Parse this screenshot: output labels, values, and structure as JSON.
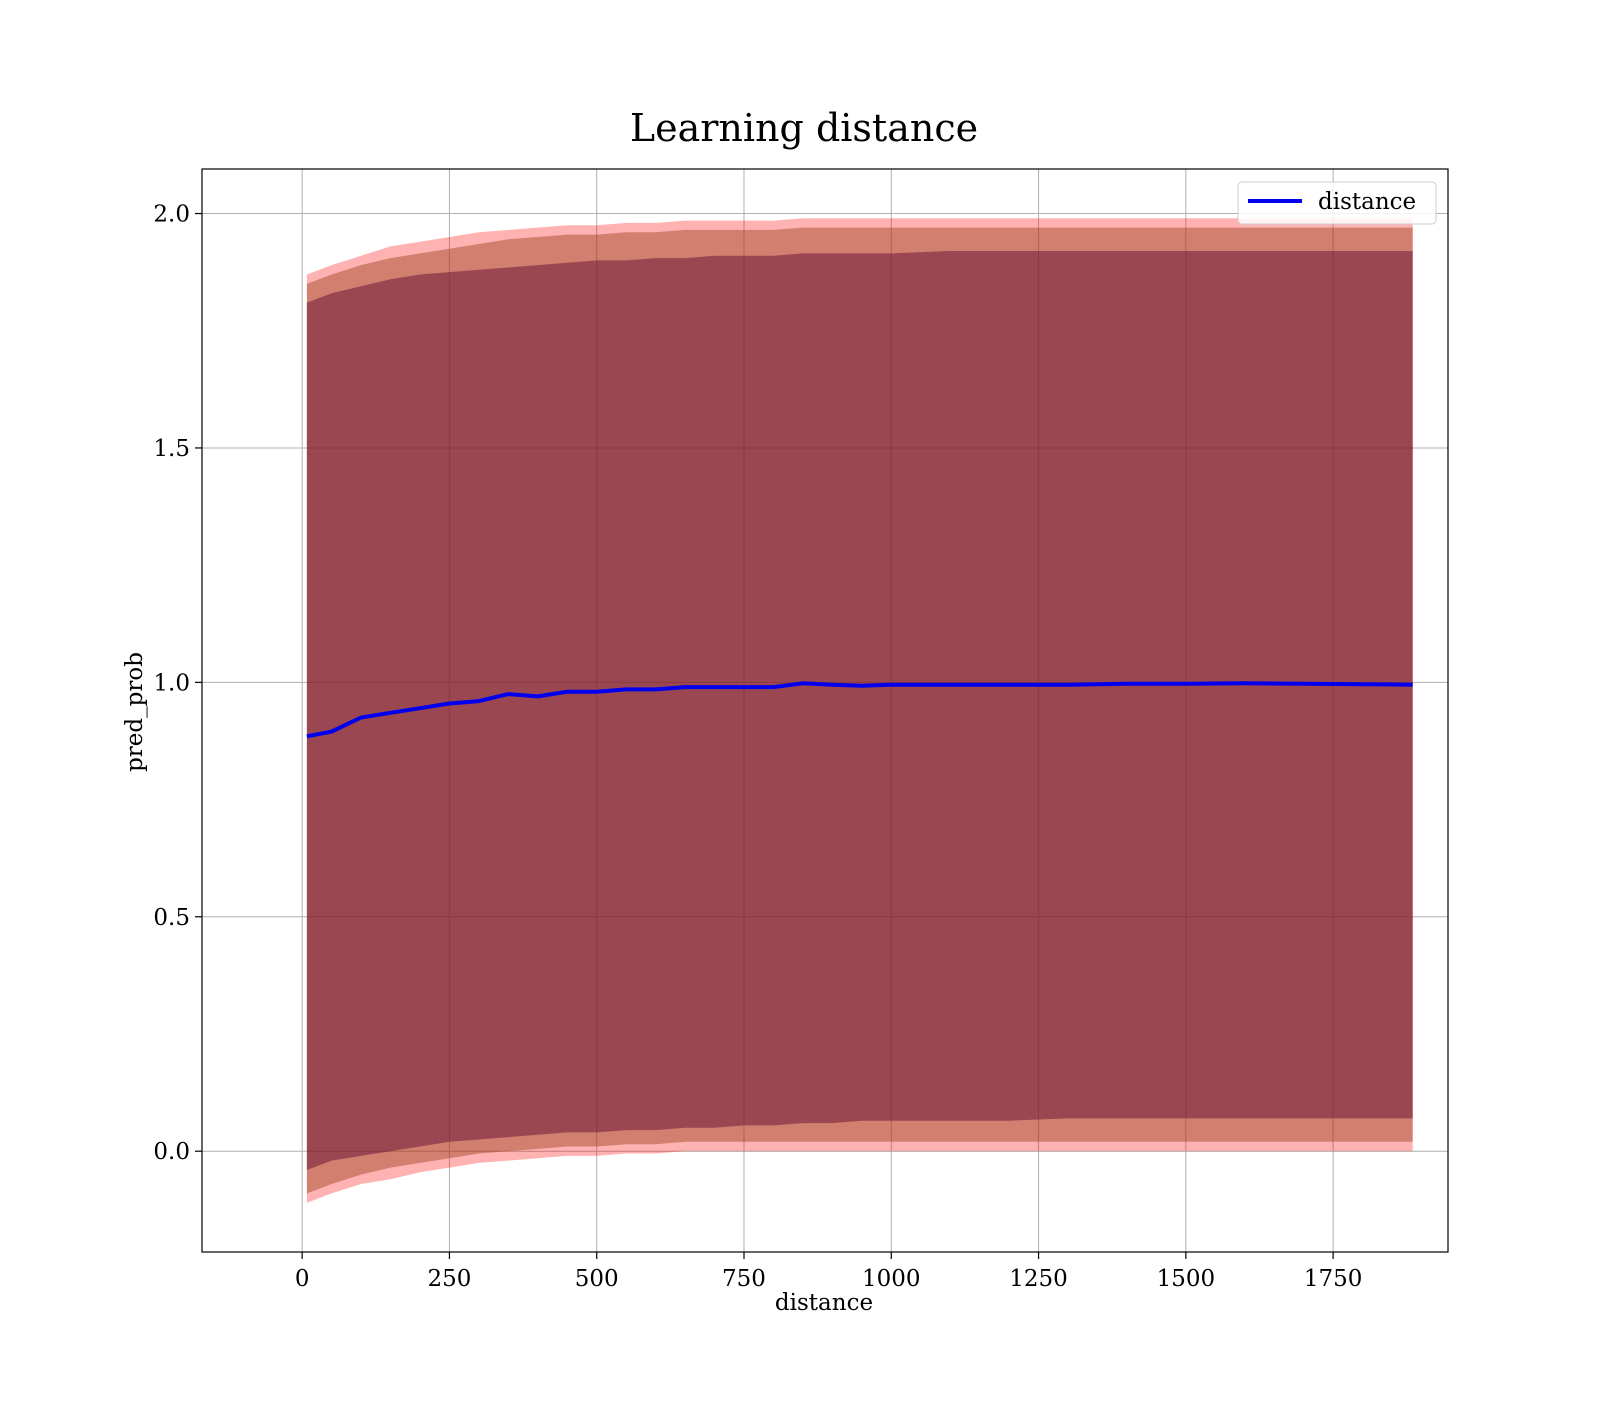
{
  "chart_data": {
    "type": "area",
    "title": "Learning distance",
    "xlabel": "distance",
    "ylabel": "pred_prob",
    "xlim": [
      -170,
      1945
    ],
    "ylim": [
      -0.215,
      2.095
    ],
    "xticks": [
      0,
      250,
      500,
      750,
      1000,
      1250,
      1500,
      1750
    ],
    "xtick_labels": [
      "0",
      "250",
      "500",
      "750",
      "1000",
      "1250",
      "1500",
      "1750"
    ],
    "yticks": [
      0.0,
      0.5,
      1.0,
      1.5,
      2.0
    ],
    "ytick_labels": [
      "0.0",
      "0.5",
      "1.0",
      "1.5",
      "2.0"
    ],
    "grid": true,
    "legend": {
      "position": "top-right",
      "entries": [
        "distance"
      ]
    },
    "colors": {
      "line": "#0000ee",
      "band": "#ff0000",
      "band_mid": "#9b4020",
      "band_inner": "#6b1a3a",
      "grid": "#b0b0b0"
    },
    "x": [
      8,
      50,
      100,
      150,
      200,
      250,
      300,
      350,
      400,
      450,
      500,
      550,
      600,
      650,
      700,
      750,
      800,
      850,
      900,
      950,
      1000,
      1100,
      1200,
      1300,
      1400,
      1500,
      1600,
      1700,
      1800,
      1885
    ],
    "series": [
      {
        "name": "distance",
        "values": [
          0.885,
          0.895,
          0.925,
          0.935,
          0.945,
          0.955,
          0.96,
          0.975,
          0.97,
          0.98,
          0.98,
          0.985,
          0.985,
          0.99,
          0.99,
          0.99,
          0.99,
          0.998,
          0.995,
          0.993,
          0.995,
          0.995,
          0.995,
          0.995,
          0.997,
          0.997,
          0.998,
          0.997,
          0.996,
          0.995
        ]
      }
    ],
    "bands": [
      {
        "lower": [
          -0.11,
          -0.09,
          -0.07,
          -0.06,
          -0.045,
          -0.035,
          -0.025,
          -0.02,
          -0.015,
          -0.01,
          -0.01,
          -0.005,
          -0.005,
          0.0,
          0.0,
          0.0,
          0.0,
          0.0,
          0.0,
          0.0,
          0.0,
          0.0,
          0.0,
          0.0,
          0.0,
          0.0,
          0.0,
          0.0,
          0.0,
          0.0
        ],
        "upper": [
          1.87,
          1.89,
          1.91,
          1.93,
          1.94,
          1.95,
          1.96,
          1.965,
          1.97,
          1.975,
          1.975,
          1.98,
          1.98,
          1.985,
          1.985,
          1.985,
          1.985,
          1.99,
          1.99,
          1.99,
          1.99,
          1.99,
          1.99,
          1.99,
          1.99,
          1.99,
          1.99,
          1.99,
          1.99,
          1.99
        ]
      },
      {
        "lower": [
          -0.09,
          -0.07,
          -0.05,
          -0.035,
          -0.025,
          -0.015,
          -0.005,
          0.0,
          0.005,
          0.01,
          0.01,
          0.015,
          0.015,
          0.02,
          0.02,
          0.02,
          0.02,
          0.02,
          0.02,
          0.02,
          0.02,
          0.02,
          0.02,
          0.02,
          0.02,
          0.02,
          0.02,
          0.02,
          0.02,
          0.02
        ],
        "upper": [
          1.85,
          1.87,
          1.89,
          1.905,
          1.915,
          1.925,
          1.935,
          1.945,
          1.95,
          1.955,
          1.955,
          1.96,
          1.96,
          1.965,
          1.965,
          1.965,
          1.965,
          1.97,
          1.97,
          1.97,
          1.97,
          1.97,
          1.97,
          1.97,
          1.97,
          1.97,
          1.97,
          1.97,
          1.97,
          1.97
        ]
      },
      {
        "lower": [
          -0.04,
          -0.02,
          -0.01,
          0.0,
          0.01,
          0.02,
          0.025,
          0.03,
          0.035,
          0.04,
          0.04,
          0.045,
          0.045,
          0.05,
          0.05,
          0.055,
          0.055,
          0.06,
          0.06,
          0.065,
          0.065,
          0.065,
          0.065,
          0.07,
          0.07,
          0.07,
          0.07,
          0.07,
          0.07,
          0.07
        ],
        "upper": [
          1.81,
          1.83,
          1.845,
          1.86,
          1.87,
          1.875,
          1.88,
          1.885,
          1.89,
          1.895,
          1.9,
          1.9,
          1.905,
          1.905,
          1.91,
          1.91,
          1.91,
          1.915,
          1.915,
          1.915,
          1.915,
          1.92,
          1.92,
          1.92,
          1.92,
          1.92,
          1.92,
          1.92,
          1.92,
          1.92
        ]
      }
    ]
  }
}
